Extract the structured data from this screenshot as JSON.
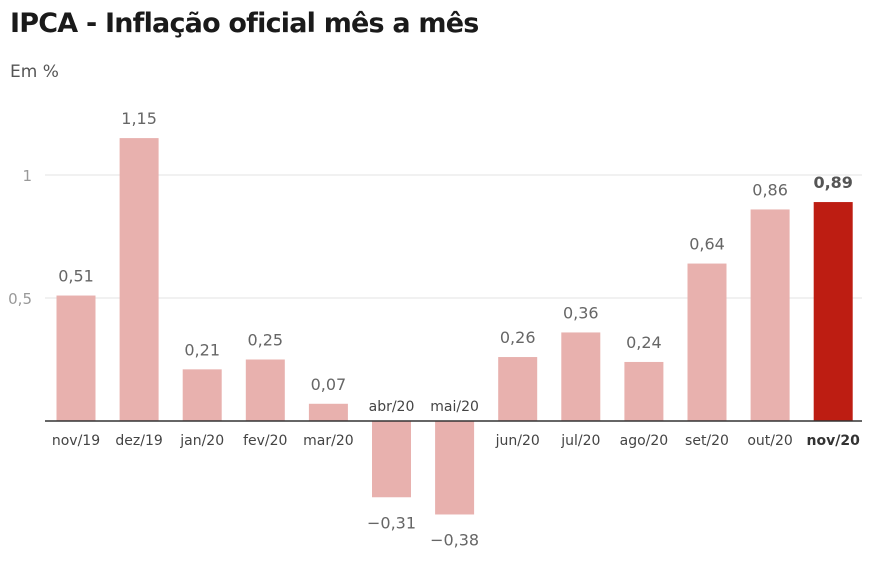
{
  "title": "IPCA - Inflação oficial mês a mês",
  "subtitle": "Em %",
  "colors": {
    "bar": "#e8b1ae",
    "highlight": "#bd1d12",
    "gridline": "#e3e3e3",
    "axis_line": "#333333",
    "tick_text": "#999999",
    "label_text": "#666666",
    "highlight_label_text": "#555555"
  },
  "chart_data": {
    "type": "bar",
    "categories": [
      "nov/19",
      "dez/19",
      "jan/20",
      "fev/20",
      "mar/20",
      "abr/20",
      "mai/20",
      "jun/20",
      "jul/20",
      "ago/20",
      "set/20",
      "out/20",
      "nov/20"
    ],
    "values": [
      0.51,
      1.15,
      0.21,
      0.25,
      0.07,
      -0.31,
      -0.38,
      0.26,
      0.36,
      0.24,
      0.64,
      0.86,
      0.89
    ],
    "value_labels": [
      "0,51",
      "1,15",
      "0,21",
      "0,25",
      "0,07",
      "−0,31",
      "−0,38",
      "0,26",
      "0,36",
      "0,24",
      "0,64",
      "0,86",
      "0,89"
    ],
    "highlight_category": "nov/20",
    "y_ticks": [
      {
        "value": 0.5,
        "label": "0,5"
      },
      {
        "value": 1,
        "label": "1"
      }
    ],
    "ylim": [
      -0.45,
      1.22
    ],
    "grid": true,
    "legend": "none",
    "title": "IPCA - Inflação oficial mês a mês",
    "xlabel": "",
    "ylabel": "Em %"
  }
}
